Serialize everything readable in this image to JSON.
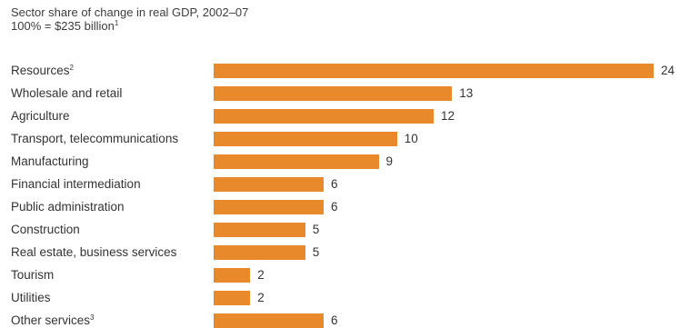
{
  "chart_data": {
    "type": "bar",
    "orientation": "horizontal",
    "title": "Sector share of change in real GDP, 2002–07",
    "subtitle": {
      "text": "100% = $235 billion",
      "footnote": "1"
    },
    "xlabel": "",
    "ylabel": "",
    "xlim": [
      0,
      24
    ],
    "grid": false,
    "bar_color": "#E8892B",
    "categories": [
      {
        "label": "Resources",
        "footnote": "2"
      },
      {
        "label": "Wholesale and retail",
        "footnote": ""
      },
      {
        "label": "Agriculture",
        "footnote": ""
      },
      {
        "label": "Transport, telecommunications",
        "footnote": ""
      },
      {
        "label": "Manufacturing",
        "footnote": ""
      },
      {
        "label": "Financial intermediation",
        "footnote": ""
      },
      {
        "label": "Public administration",
        "footnote": ""
      },
      {
        "label": "Construction",
        "footnote": ""
      },
      {
        "label": "Real estate, business services",
        "footnote": ""
      },
      {
        "label": "Tourism",
        "footnote": ""
      },
      {
        "label": "Utilities",
        "footnote": ""
      },
      {
        "label": "Other services",
        "footnote": "3"
      }
    ],
    "values": [
      24,
      13,
      12,
      10,
      9,
      6,
      6,
      5,
      5,
      2,
      2,
      6
    ]
  }
}
